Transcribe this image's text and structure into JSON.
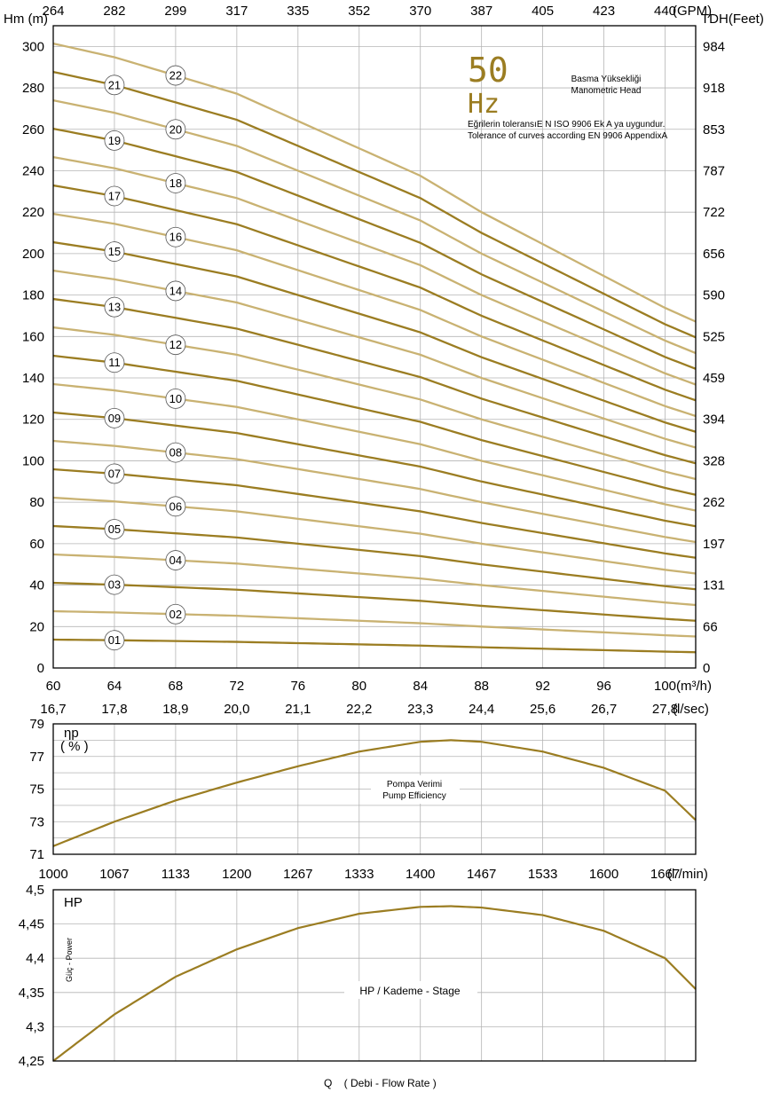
{
  "chart_data": [
    {
      "type": "line",
      "panel": "head",
      "title": "50 Hz",
      "title_parts": {
        "big": "50",
        "unit": "Hz"
      },
      "legend_lines": [
        "Basma Yüksekliği",
        "Manometric Head"
      ],
      "note_lines": [
        "Eğrilerin toleransıE N ISO 9906 Ek A ya uygundur.",
        "Tolerance of curves according EN 9906 AppendixA"
      ],
      "ylabel_left": "Hm (m)",
      "ylabel_right": "TDH(Feet)",
      "xlabel_bottom_unit": "(m³/h)",
      "xlabel_top_unit": "(GPM)",
      "xlim": [
        60,
        102
      ],
      "ylim": [
        0,
        310
      ],
      "grid": true,
      "yticks": [
        0,
        20,
        40,
        60,
        80,
        100,
        120,
        140,
        160,
        180,
        200,
        220,
        240,
        260,
        280,
        300
      ],
      "yticks_right_labels": [
        "0",
        "66",
        "131",
        "197",
        "262",
        "328",
        "394",
        "459",
        "525",
        "590",
        "656",
        "722",
        "787",
        "853",
        "918",
        "984"
      ],
      "xticks": [
        60,
        64,
        68,
        72,
        76,
        80,
        84,
        88,
        92,
        96,
        100
      ],
      "xticks_top_labels": [
        "264",
        "282",
        "299",
        "317",
        "335",
        "352",
        "370",
        "387",
        "405",
        "423",
        "440"
      ],
      "x_eval": [
        60,
        64,
        68,
        72,
        76,
        80,
        84,
        88,
        92,
        96,
        100,
        102
      ],
      "stage_head": [
        13.7,
        13.4,
        13.0,
        12.6,
        12.0,
        11.4,
        10.8,
        10.0,
        9.3,
        8.6,
        7.9,
        7.6
      ],
      "series": [
        {
          "name": "01",
          "stages": 1,
          "label_x": 64
        },
        {
          "name": "02",
          "stages": 2,
          "label_x": 68
        },
        {
          "name": "03",
          "stages": 3,
          "label_x": 64
        },
        {
          "name": "04",
          "stages": 4,
          "label_x": 68
        },
        {
          "name": "05",
          "stages": 5,
          "label_x": 64
        },
        {
          "name": "06",
          "stages": 6,
          "label_x": 68
        },
        {
          "name": "07",
          "stages": 7,
          "label_x": 64
        },
        {
          "name": "08",
          "stages": 8,
          "label_x": 68
        },
        {
          "name": "09",
          "stages": 9,
          "label_x": 64
        },
        {
          "name": "10",
          "stages": 10,
          "label_x": 68
        },
        {
          "name": "11",
          "stages": 11,
          "label_x": 64
        },
        {
          "name": "12",
          "stages": 12,
          "label_x": 68
        },
        {
          "name": "13",
          "stages": 13,
          "label_x": 64
        },
        {
          "name": "14",
          "stages": 14,
          "label_x": 68
        },
        {
          "name": "15",
          "stages": 15,
          "label_x": 64
        },
        {
          "name": "16",
          "stages": 16,
          "label_x": 68
        },
        {
          "name": "17",
          "stages": 17,
          "label_x": 64
        },
        {
          "name": "18",
          "stages": 18,
          "label_x": 68
        },
        {
          "name": "19",
          "stages": 19,
          "label_x": 64
        },
        {
          "name": "20",
          "stages": 20,
          "label_x": 68
        },
        {
          "name": "21",
          "stages": 21,
          "label_x": 64
        },
        {
          "name": "22",
          "stages": 22,
          "label_x": 68
        }
      ],
      "colors": {
        "odd": "#9b7d22",
        "even": "#c9b272"
      }
    },
    {
      "type": "line",
      "panel": "efficiency",
      "ylabel_lines": [
        "ηp",
        "( % )"
      ],
      "legend_lines": [
        "Pompa Verimi",
        "Pump Efficiency"
      ],
      "xlabel_top_unit": "(l/sec)",
      "xticks_top_labels": [
        "16,7",
        "17,8",
        "18,9",
        "20,0",
        "21,1",
        "22,2",
        "23,3",
        "24,4",
        "25,6",
        "26,7",
        "27,8"
      ],
      "ylim": [
        71,
        79
      ],
      "yticks": [
        71,
        73,
        75,
        77,
        79
      ],
      "grid": true,
      "x": [
        60,
        64,
        68,
        72,
        76,
        80,
        84,
        86,
        88,
        92,
        96,
        100,
        102
      ],
      "y": [
        71.5,
        73.0,
        74.3,
        75.4,
        76.4,
        77.3,
        77.9,
        78.0,
        77.9,
        77.3,
        76.3,
        74.9,
        73.1
      ],
      "color": "#9b7d22"
    },
    {
      "type": "line",
      "panel": "power",
      "ylabel": "HP",
      "ylabel_rotated": "Güç - Power",
      "legend": "HP / Kademe - Stage",
      "xlabel_top_unit": "(l /min)",
      "xticks_top_labels": [
        "1000",
        "1067",
        "1133",
        "1200",
        "1267",
        "1333",
        "1400",
        "1467",
        "1533",
        "1600",
        "1667"
      ],
      "xlabel": "Q    ( Debi - Flow Rate )",
      "ylim": [
        4.25,
        4.5
      ],
      "yticks": [
        4.25,
        4.3,
        4.35,
        4.4,
        4.45,
        4.5
      ],
      "ytick_labels": [
        "4,25",
        "4,3",
        "4,35",
        "4,4",
        "4,45",
        "4,5"
      ],
      "grid": true,
      "x": [
        60,
        64,
        68,
        72,
        76,
        80,
        84,
        86,
        88,
        92,
        96,
        100,
        102
      ],
      "y": [
        4.25,
        4.318,
        4.373,
        4.413,
        4.444,
        4.465,
        4.475,
        4.476,
        4.474,
        4.463,
        4.44,
        4.4,
        4.355
      ],
      "color": "#9b7d22"
    }
  ]
}
